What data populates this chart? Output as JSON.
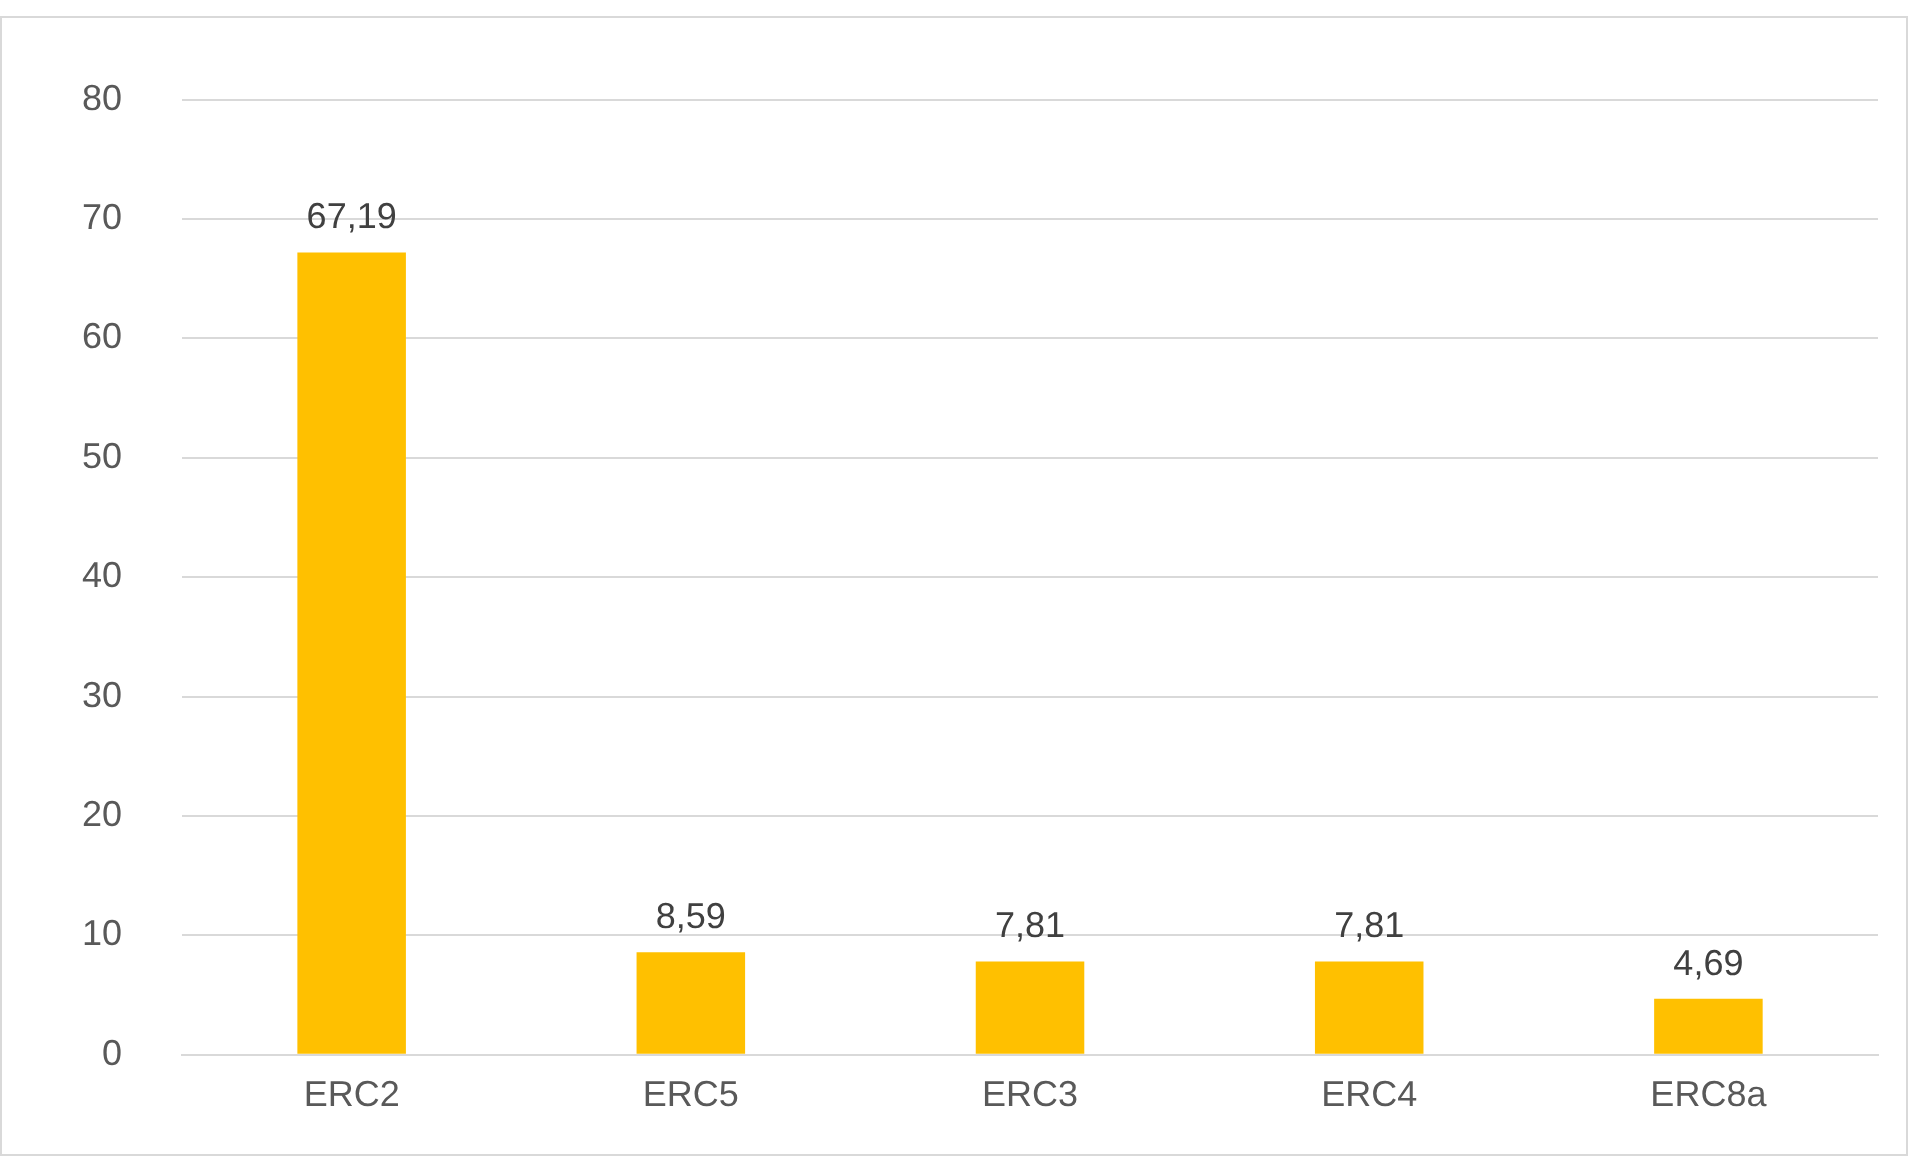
{
  "chart_data": {
    "type": "bar",
    "categories": [
      "ERC2",
      "ERC5",
      "ERC3",
      "ERC4",
      "ERC8a"
    ],
    "values": [
      67.19,
      8.59,
      7.81,
      7.81,
      4.69
    ],
    "value_labels": [
      "67,19",
      "8,59",
      "7,81",
      "7,81",
      "4,69"
    ],
    "color": "#ffc000",
    "ylim": [
      0,
      80
    ],
    "yticks": [
      0,
      10,
      20,
      30,
      40,
      50,
      60,
      70,
      80
    ],
    "grid": "y",
    "legend": false
  }
}
